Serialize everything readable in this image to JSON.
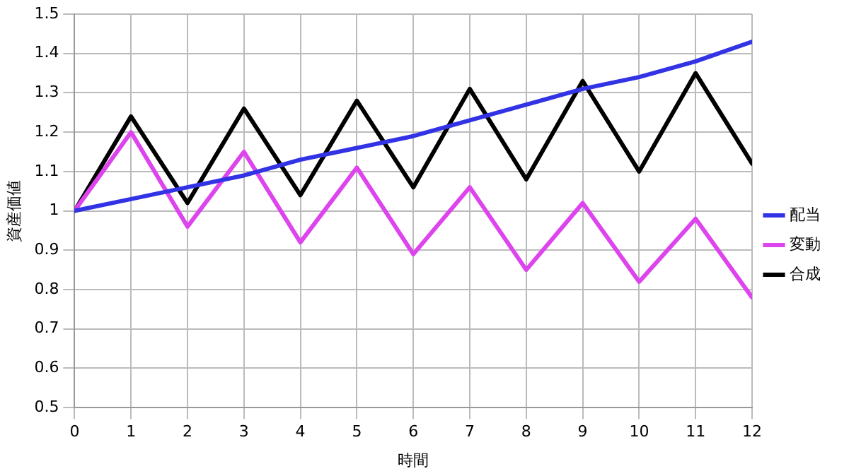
{
  "chart_data": {
    "type": "line",
    "xlabel": "時間",
    "ylabel": "資産価値",
    "x": [
      0,
      1,
      2,
      3,
      4,
      5,
      6,
      7,
      8,
      9,
      10,
      11,
      12
    ],
    "xlim": [
      0,
      12
    ],
    "xticks": [
      0,
      1,
      2,
      3,
      4,
      5,
      6,
      7,
      8,
      9,
      10,
      11,
      12
    ],
    "ylim": [
      0.5,
      1.5
    ],
    "yticks": [
      0.5,
      0.6,
      0.7,
      0.8,
      0.9,
      1,
      1.1,
      1.2,
      1.3,
      1.4,
      1.5
    ],
    "grid": true,
    "legend": "right",
    "marker": "none",
    "line_style": "solid",
    "series": [
      {
        "name": "配当",
        "color": "#3333e6",
        "values": [
          1,
          1.03,
          1.06,
          1.09,
          1.13,
          1.16,
          1.19,
          1.23,
          1.27,
          1.31,
          1.34,
          1.38,
          1.43
        ]
      },
      {
        "name": "変動",
        "color": "#dd44ee",
        "values": [
          1,
          1.2,
          0.96,
          1.15,
          0.92,
          1.11,
          0.89,
          1.06,
          0.85,
          1.02,
          0.82,
          0.98,
          0.78
        ]
      },
      {
        "name": "合成",
        "color": "#000000",
        "values": [
          1,
          1.24,
          1.02,
          1.26,
          1.04,
          1.28,
          1.06,
          1.31,
          1.08,
          1.33,
          1.1,
          1.35,
          1.12
        ]
      }
    ]
  }
}
